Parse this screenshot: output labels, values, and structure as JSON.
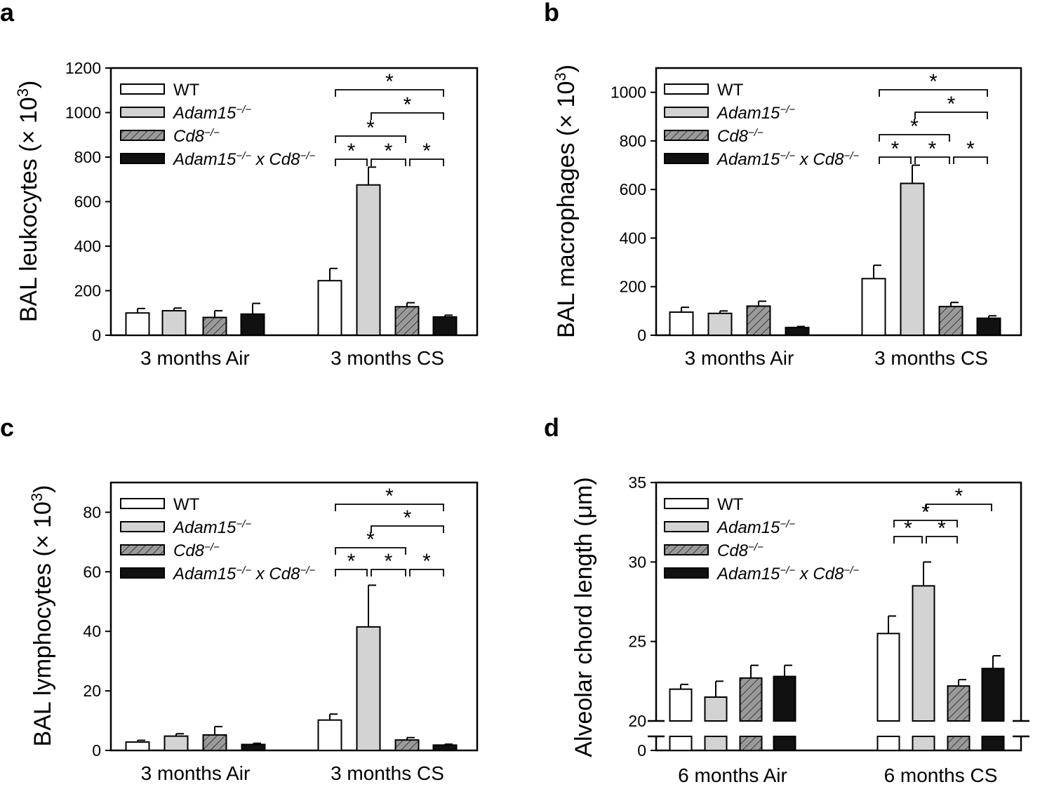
{
  "legend": {
    "entries": [
      {
        "name": "WT",
        "fill": "#ffffff",
        "pattern": "none"
      },
      {
        "name": "Adam15",
        "sup": "−/−",
        "fill": "#d3d3d3",
        "pattern": "none"
      },
      {
        "name": "Cd8",
        "sup": "−/−",
        "fill": "#9a9a9a",
        "pattern": "hatch"
      },
      {
        "name": "Adam15",
        "sup": "−/−",
        "name2": " x Cd8",
        "sup2": "−/−",
        "fill": "#111111",
        "pattern": "none"
      }
    ]
  },
  "chart_data": [
    {
      "panel": "a",
      "type": "bar",
      "ylabel": "BAL leukocytes (× 10",
      "ylabel_sup": "3",
      "ylabel_close": ")",
      "ylim": [
        0,
        1200
      ],
      "yticks": [
        0,
        200,
        400,
        600,
        800,
        1000,
        1200
      ],
      "categories": [
        "3 months Air",
        "3 months CS"
      ],
      "series": [
        {
          "name": "WT",
          "values": [
            100,
            245
          ],
          "errors": [
            20,
            55
          ]
        },
        {
          "name": "Adam15−/−",
          "values": [
            110,
            675
          ],
          "errors": [
            12,
            80
          ]
        },
        {
          "name": "Cd8−/−",
          "values": [
            80,
            128
          ],
          "errors": [
            30,
            18
          ]
        },
        {
          "name": "Adam15−/− x Cd8−/−",
          "values": [
            95,
            82
          ],
          "errors": [
            48,
            8
          ]
        }
      ],
      "significance": [
        {
          "from": 0,
          "to": 3,
          "level": 0,
          "label": "*"
        },
        {
          "from": 1,
          "to": 3,
          "level": 1,
          "label": "*"
        },
        {
          "from": 0,
          "to": 2,
          "level": 2,
          "label": "*"
        },
        {
          "from": 0,
          "to": 1,
          "level": 3,
          "label": "*"
        },
        {
          "from": 1,
          "to": 2,
          "level": 3,
          "label": "*"
        },
        {
          "from": 2,
          "to": 3,
          "level": 3,
          "label": "*"
        }
      ]
    },
    {
      "panel": "b",
      "type": "bar",
      "ylabel": "BAL macrophages (× 10",
      "ylabel_sup": "3",
      "ylabel_close": ")",
      "ylim": [
        0,
        1100
      ],
      "yticks": [
        0,
        200,
        400,
        600,
        800,
        1000
      ],
      "categories": [
        "3 months Air",
        "3 months CS"
      ],
      "series": [
        {
          "name": "WT",
          "values": [
            95,
            233
          ],
          "errors": [
            20,
            55
          ]
        },
        {
          "name": "Adam15−/−",
          "values": [
            90,
            625
          ],
          "errors": [
            10,
            75
          ]
        },
        {
          "name": "Cd8−/−",
          "values": [
            120,
            118
          ],
          "errors": [
            20,
            17
          ]
        },
        {
          "name": "Adam15−/− x Cd8−/−",
          "values": [
            32,
            70
          ],
          "errors": [
            4,
            10
          ]
        }
      ],
      "significance": [
        {
          "from": 0,
          "to": 3,
          "level": 0,
          "label": "*"
        },
        {
          "from": 1,
          "to": 3,
          "level": 1,
          "label": "*"
        },
        {
          "from": 0,
          "to": 2,
          "level": 2,
          "label": "*"
        },
        {
          "from": 0,
          "to": 1,
          "level": 3,
          "label": "*"
        },
        {
          "from": 1,
          "to": 2,
          "level": 3,
          "label": "*"
        },
        {
          "from": 2,
          "to": 3,
          "level": 3,
          "label": "*"
        }
      ]
    },
    {
      "panel": "c",
      "type": "bar",
      "ylabel": "BAL lymphocytes (× 10",
      "ylabel_sup": "3",
      "ylabel_close": ")",
      "ylim": [
        0,
        90
      ],
      "yticks": [
        0,
        20,
        40,
        60,
        80
      ],
      "categories": [
        "3 months Air",
        "3 months CS"
      ],
      "series": [
        {
          "name": "WT",
          "values": [
            2.8,
            10.2
          ],
          "errors": [
            0.6,
            2.0
          ]
        },
        {
          "name": "Adam15−/−",
          "values": [
            4.8,
            41.5
          ],
          "errors": [
            0.8,
            14.0
          ]
        },
        {
          "name": "Cd8−/−",
          "values": [
            5.2,
            3.5
          ],
          "errors": [
            2.8,
            0.8
          ]
        },
        {
          "name": "Adam15−/− x Cd8−/−",
          "values": [
            2.0,
            1.8
          ],
          "errors": [
            0.4,
            0.3
          ]
        }
      ],
      "significance": [
        {
          "from": 0,
          "to": 3,
          "level": 0,
          "label": "*"
        },
        {
          "from": 1,
          "to": 3,
          "level": 1,
          "label": "*"
        },
        {
          "from": 0,
          "to": 2,
          "level": 2,
          "label": "*"
        },
        {
          "from": 0,
          "to": 1,
          "level": 3,
          "label": "*"
        },
        {
          "from": 1,
          "to": 2,
          "level": 3,
          "label": "*"
        },
        {
          "from": 2,
          "to": 3,
          "level": 3,
          "label": "*"
        }
      ]
    },
    {
      "panel": "d",
      "type": "bar",
      "ylabel": "Alveolar chord length (μm)",
      "ylabel_sup": "",
      "ylabel_close": "",
      "ylim": [
        20,
        35
      ],
      "axis_break": true,
      "yticks": [
        0,
        20,
        25,
        30,
        35
      ],
      "categories": [
        "6 months Air",
        "6 months CS"
      ],
      "series": [
        {
          "name": "WT",
          "values": [
            22.0,
            25.5
          ],
          "errors": [
            0.3,
            1.1
          ]
        },
        {
          "name": "Adam15−/−",
          "values": [
            21.5,
            28.5
          ],
          "errors": [
            1.0,
            1.5
          ]
        },
        {
          "name": "Cd8−/−",
          "values": [
            22.7,
            22.2
          ],
          "errors": [
            0.8,
            0.4
          ]
        },
        {
          "name": "Adam15−/− x Cd8−/−",
          "values": [
            22.8,
            23.3
          ],
          "errors": [
            0.7,
            0.8
          ]
        }
      ],
      "significance": [
        {
          "from": 1,
          "to": 3,
          "level": 0,
          "label": "*"
        },
        {
          "from": 0,
          "to": 2,
          "level": 1,
          "label": "*"
        },
        {
          "from": 0,
          "to": 1,
          "level": 2,
          "label": "*"
        },
        {
          "from": 1,
          "to": 2,
          "level": 2,
          "label": "*"
        }
      ]
    }
  ]
}
